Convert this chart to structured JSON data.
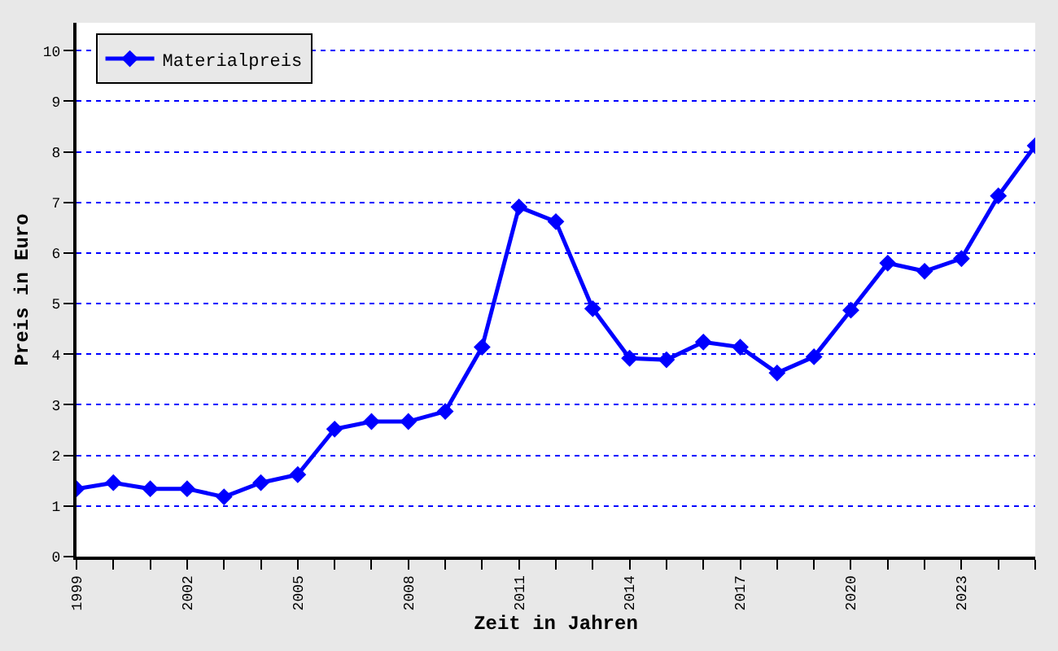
{
  "chart_data": {
    "type": "line",
    "xlabel": "Zeit in Jahren",
    "ylabel": "Preis in Euro",
    "x": [
      1999,
      2000,
      2001,
      2002,
      2003,
      2004,
      2005,
      2006,
      2007,
      2008,
      2009,
      2010,
      2011,
      2012,
      2013,
      2014,
      2015,
      2016,
      2017,
      2018,
      2019,
      2020,
      2021,
      2022,
      2023,
      2024,
      2025
    ],
    "series": [
      {
        "name": "Materialpreis",
        "color": "#0000ff",
        "values": [
          1.34,
          1.46,
          1.34,
          1.34,
          1.18,
          1.46,
          1.62,
          2.52,
          2.67,
          2.67,
          2.87,
          4.14,
          6.91,
          6.62,
          4.9,
          3.92,
          3.89,
          4.24,
          4.14,
          3.63,
          3.95,
          4.87,
          5.8,
          5.64,
          5.89,
          7.13,
          8.12
        ]
      }
    ],
    "xlim": [
      1999,
      2025
    ],
    "xticks": [
      1999,
      {
        "value": 2000,
        "label": null
      },
      {
        "value": 2001,
        "label": null
      },
      2002,
      {
        "value": 2003,
        "label": null
      },
      {
        "value": 2004,
        "label": null
      },
      2005,
      {
        "value": 2006,
        "label": null
      },
      {
        "value": 2007,
        "label": null
      },
      2008,
      {
        "value": 2009,
        "label": null
      },
      {
        "value": 2010,
        "label": null
      },
      2011,
      {
        "value": 2012,
        "label": null
      },
      {
        "value": 2013,
        "label": null
      },
      2014,
      {
        "value": 2015,
        "label": null
      },
      {
        "value": 2016,
        "label": null
      },
      2017,
      {
        "value": 2018,
        "label": null
      },
      {
        "value": 2019,
        "label": null
      },
      2020,
      {
        "value": 2021,
        "label": null
      },
      {
        "value": 2022,
        "label": null
      },
      2023,
      {
        "value": 2024,
        "label": null
      },
      {
        "value": 2025,
        "label": null
      }
    ],
    "ylim": [
      0,
      10.55
    ],
    "yticks": [
      0,
      1,
      2,
      3,
      4,
      5,
      6,
      7,
      8,
      9,
      10
    ],
    "grid": "y",
    "legend": "top left",
    "marker": "diamond",
    "line_style": "solid"
  }
}
